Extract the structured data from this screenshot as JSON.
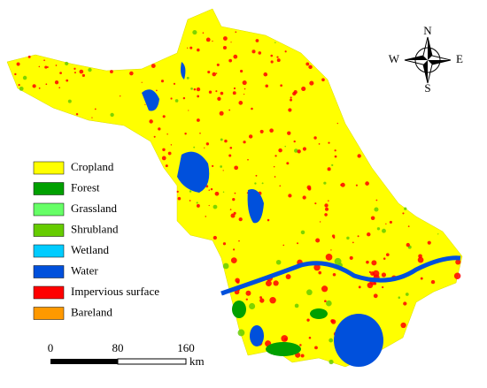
{
  "legend": {
    "items": [
      {
        "label": "Cropland",
        "color": "#ffff00"
      },
      {
        "label": "Forest",
        "color": "#00a000"
      },
      {
        "label": "Grassland",
        "color": "#66ff66"
      },
      {
        "label": "Shrubland",
        "color": "#66cc00"
      },
      {
        "label": "Wetland",
        "color": "#00ccff"
      },
      {
        "label": "Water",
        "color": "#0050dc"
      },
      {
        "label": "Impervious surface",
        "color": "#ff0000"
      },
      {
        "label": "Bareland",
        "color": "#ff9900"
      }
    ]
  },
  "compass": {
    "north": "N",
    "south": "S",
    "west": "W",
    "east": "E"
  },
  "scale_bar": {
    "ticks": [
      0,
      80,
      160
    ],
    "unit": "km"
  }
}
